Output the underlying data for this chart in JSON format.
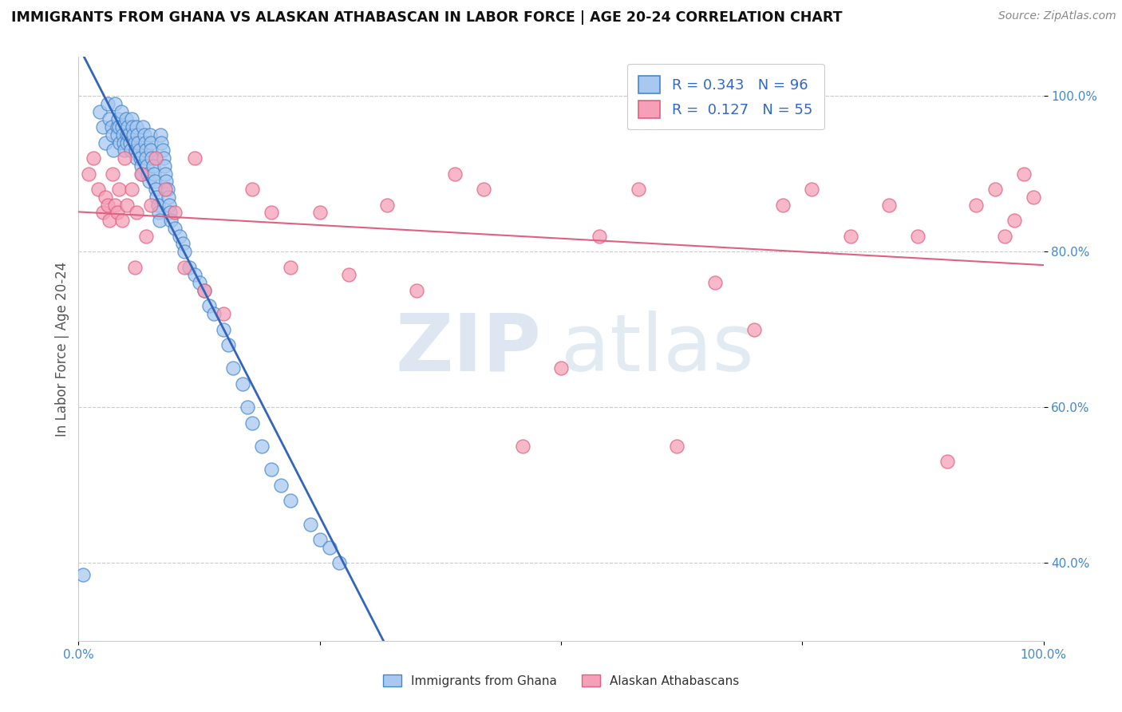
{
  "title": "IMMIGRANTS FROM GHANA VS ALASKAN ATHABASCAN IN LABOR FORCE | AGE 20-24 CORRELATION CHART",
  "source": "Source: ZipAtlas.com",
  "ylabel": "In Labor Force | Age 20-24",
  "xlim": [
    0.0,
    1.0
  ],
  "ylim": [
    0.3,
    1.05
  ],
  "yticks": [
    0.4,
    0.6,
    0.8,
    1.0
  ],
  "ytick_labels": [
    "40.0%",
    "60.0%",
    "80.0%",
    "100.0%"
  ],
  "r_ghana": 0.343,
  "n_ghana": 96,
  "r_athabascan": 0.127,
  "n_athabascan": 55,
  "ghana_color": "#a8c8f0",
  "ghana_edge_color": "#4488cc",
  "ghana_line_color": "#3366bb",
  "athabascan_color": "#f5a0b8",
  "athabascan_edge_color": "#e06080",
  "athabascan_line_color": "#e06080",
  "legend_label_ghana": "Immigrants from Ghana",
  "legend_label_athabascan": "Alaskan Athabascans",
  "watermark_zip": "ZIP",
  "watermark_atlas": "atlas",
  "background_color": "#ffffff",
  "ghana_x": [
    0.005,
    0.022,
    0.025,
    0.028,
    0.03,
    0.032,
    0.034,
    0.035,
    0.036,
    0.038,
    0.04,
    0.04,
    0.041,
    0.042,
    0.043,
    0.044,
    0.045,
    0.046,
    0.047,
    0.048,
    0.049,
    0.05,
    0.05,
    0.051,
    0.052,
    0.053,
    0.054,
    0.055,
    0.056,
    0.057,
    0.058,
    0.059,
    0.06,
    0.06,
    0.061,
    0.062,
    0.063,
    0.064,
    0.065,
    0.066,
    0.067,
    0.068,
    0.069,
    0.07,
    0.07,
    0.071,
    0.072,
    0.073,
    0.074,
    0.075,
    0.075,
    0.076,
    0.077,
    0.078,
    0.079,
    0.08,
    0.081,
    0.082,
    0.083,
    0.084,
    0.085,
    0.086,
    0.087,
    0.088,
    0.089,
    0.09,
    0.091,
    0.092,
    0.093,
    0.094,
    0.095,
    0.096,
    0.1,
    0.105,
    0.108,
    0.11,
    0.115,
    0.12,
    0.125,
    0.13,
    0.135,
    0.14,
    0.15,
    0.155,
    0.16,
    0.17,
    0.175,
    0.18,
    0.19,
    0.2,
    0.21,
    0.22,
    0.24,
    0.25,
    0.26,
    0.27
  ],
  "ghana_y": [
    0.385,
    0.98,
    0.96,
    0.94,
    0.99,
    0.97,
    0.96,
    0.95,
    0.93,
    0.99,
    0.96,
    0.95,
    0.97,
    0.96,
    0.94,
    0.98,
    0.96,
    0.95,
    0.94,
    0.93,
    0.97,
    0.95,
    0.94,
    0.96,
    0.95,
    0.94,
    0.93,
    0.97,
    0.96,
    0.95,
    0.94,
    0.93,
    0.92,
    0.96,
    0.95,
    0.94,
    0.93,
    0.92,
    0.91,
    0.9,
    0.96,
    0.95,
    0.94,
    0.93,
    0.92,
    0.91,
    0.9,
    0.89,
    0.95,
    0.94,
    0.93,
    0.92,
    0.91,
    0.9,
    0.89,
    0.88,
    0.87,
    0.86,
    0.85,
    0.84,
    0.95,
    0.94,
    0.93,
    0.92,
    0.91,
    0.9,
    0.89,
    0.88,
    0.87,
    0.86,
    0.85,
    0.84,
    0.83,
    0.82,
    0.81,
    0.8,
    0.78,
    0.77,
    0.76,
    0.75,
    0.73,
    0.72,
    0.7,
    0.68,
    0.65,
    0.63,
    0.6,
    0.58,
    0.55,
    0.52,
    0.5,
    0.48,
    0.45,
    0.43,
    0.42,
    0.4
  ],
  "athabascan_x": [
    0.01,
    0.015,
    0.02,
    0.025,
    0.028,
    0.03,
    0.032,
    0.035,
    0.038,
    0.04,
    0.042,
    0.045,
    0.048,
    0.05,
    0.055,
    0.058,
    0.06,
    0.065,
    0.07,
    0.075,
    0.08,
    0.09,
    0.1,
    0.11,
    0.12,
    0.13,
    0.15,
    0.18,
    0.2,
    0.22,
    0.25,
    0.28,
    0.32,
    0.35,
    0.39,
    0.42,
    0.46,
    0.5,
    0.54,
    0.58,
    0.62,
    0.66,
    0.7,
    0.73,
    0.76,
    0.8,
    0.84,
    0.87,
    0.9,
    0.93,
    0.95,
    0.96,
    0.97,
    0.98,
    0.99
  ],
  "athabascan_y": [
    0.9,
    0.92,
    0.88,
    0.85,
    0.87,
    0.86,
    0.84,
    0.9,
    0.86,
    0.85,
    0.88,
    0.84,
    0.92,
    0.86,
    0.88,
    0.78,
    0.85,
    0.9,
    0.82,
    0.86,
    0.92,
    0.88,
    0.85,
    0.78,
    0.92,
    0.75,
    0.72,
    0.88,
    0.85,
    0.78,
    0.85,
    0.77,
    0.86,
    0.75,
    0.9,
    0.88,
    0.55,
    0.65,
    0.82,
    0.88,
    0.55,
    0.76,
    0.7,
    0.86,
    0.88,
    0.82,
    0.86,
    0.82,
    0.53,
    0.86,
    0.88,
    0.82,
    0.84,
    0.9,
    0.87
  ]
}
